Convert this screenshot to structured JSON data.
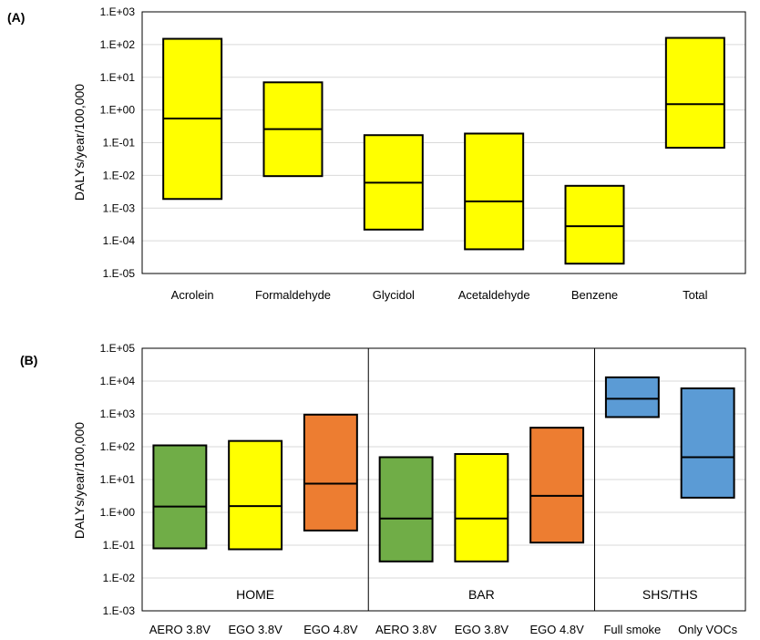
{
  "chart_data": [
    {
      "type": "boxplot-range",
      "panel_label": "(A)",
      "ylabel": "DALYs/year/100,000",
      "yscale": "log",
      "ylim": [
        1e-05,
        1000
      ],
      "yticks": [
        "1.E-05",
        "1.E-04",
        "1.E-03",
        "1.E-02",
        "1.E-01",
        "1.E+00",
        "1.E+01",
        "1.E+02",
        "1.E+03"
      ],
      "grid": true,
      "categories": [
        "Acrolein",
        "Formaldehyde",
        "Glycidol",
        "Acetaldehyde",
        "Benzene",
        "Total"
      ],
      "boxes": [
        {
          "low": 0.0019,
          "median": 0.55,
          "high": 150,
          "color": "#ffff00"
        },
        {
          "low": 0.0095,
          "median": 0.26,
          "high": 7,
          "color": "#ffff00"
        },
        {
          "low": 0.00022,
          "median": 0.006,
          "high": 0.17,
          "color": "#ffff00"
        },
        {
          "low": 5.5e-05,
          "median": 0.0016,
          "high": 0.19,
          "color": "#ffff00"
        },
        {
          "low": 2e-05,
          "median": 0.00028,
          "high": 0.0048,
          "color": "#ffff00"
        },
        {
          "low": 0.07,
          "median": 1.5,
          "high": 160,
          "color": "#ffff00"
        }
      ]
    },
    {
      "type": "boxplot-range",
      "panel_label": "(B)",
      "ylabel": "DALYs/year/100,000",
      "yscale": "log",
      "ylim": [
        0.001,
        100000
      ],
      "yticks": [
        "1.E-03",
        "1.E-02",
        "1.E-01",
        "1.E+00",
        "1.E+01",
        "1.E+02",
        "1.E+03",
        "1.E+04",
        "1.E+05"
      ],
      "grid": true,
      "categories": [
        "AERO 3.8V",
        "EGO 3.8V",
        "EGO 4.8V",
        "AERO 3.8V",
        "EGO 3.8V",
        "EGO 4.8V",
        "Full smoke",
        "Only VOCs"
      ],
      "groups": [
        {
          "label": "HOME",
          "span": [
            0,
            2
          ]
        },
        {
          "label": "BAR",
          "span": [
            3,
            5
          ]
        },
        {
          "label": "SHS/THS",
          "span": [
            6,
            7
          ]
        }
      ],
      "boxes": [
        {
          "low": 0.08,
          "median": 1.5,
          "high": 110,
          "color": "#70ad47"
        },
        {
          "low": 0.075,
          "median": 1.55,
          "high": 150,
          "color": "#ffff00"
        },
        {
          "low": 0.28,
          "median": 7.5,
          "high": 950,
          "color": "#ed7d31"
        },
        {
          "low": 0.032,
          "median": 0.65,
          "high": 48,
          "color": "#70ad47"
        },
        {
          "low": 0.032,
          "median": 0.65,
          "high": 60,
          "color": "#ffff00"
        },
        {
          "low": 0.12,
          "median": 3.2,
          "high": 380,
          "color": "#ed7d31"
        },
        {
          "low": 800,
          "median": 2900,
          "high": 13000,
          "color": "#5b9bd5"
        },
        {
          "low": 2.8,
          "median": 48,
          "high": 6000,
          "color": "#5b9bd5"
        }
      ]
    }
  ]
}
